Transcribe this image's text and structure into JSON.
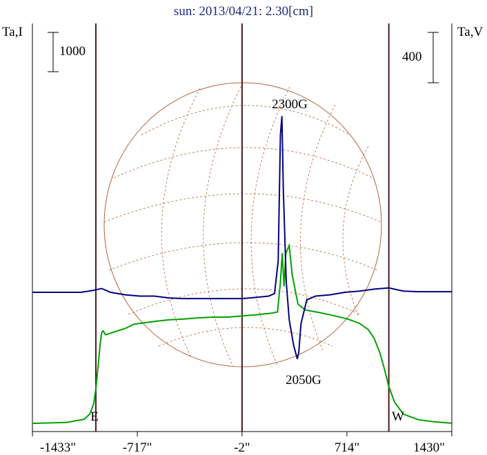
{
  "chart_data": {
    "type": "line",
    "title": "sun: 2013/04/21: 2.30[cm]",
    "left_axis_label": "Ta,I",
    "right_axis_label": "Ta,V",
    "left_scale_bar": "1000",
    "right_scale_bar": "400",
    "x_tick_labels": [
      "-1433\"",
      "-717\"",
      "-2\"",
      "714\"",
      "1430\""
    ],
    "x_ticks": [
      -1433,
      -717,
      -2,
      714,
      1430
    ],
    "xlim": [
      -1433,
      1430
    ],
    "grid": false,
    "markers": [
      {
        "label": "E",
        "x": -1000
      },
      {
        "x": -2
      },
      {
        "label": "W",
        "x": 1000
      }
    ],
    "annotations": [
      "2300G",
      "2050G"
    ],
    "series": [
      {
        "color": "#00a000",
        "values": [
          [
            -1433,
            15
          ],
          [
            -1200,
            40
          ],
          [
            -1080,
            120
          ],
          [
            -1040,
            260
          ],
          [
            -1015,
            520
          ],
          [
            -1000,
            900
          ],
          [
            -985,
            1450
          ],
          [
            -970,
            2050
          ],
          [
            -960,
            2330
          ],
          [
            -950,
            2370
          ],
          [
            -935,
            2270
          ],
          [
            -900,
            2310
          ],
          [
            -860,
            2360
          ],
          [
            -800,
            2430
          ],
          [
            -740,
            2540
          ],
          [
            -680,
            2570
          ],
          [
            -600,
            2610
          ],
          [
            -500,
            2650
          ],
          [
            -400,
            2670
          ],
          [
            -300,
            2700
          ],
          [
            -200,
            2720
          ],
          [
            -100,
            2720
          ],
          [
            0,
            2750
          ],
          [
            100,
            2780
          ],
          [
            200,
            2820
          ],
          [
            240,
            2850
          ],
          [
            260,
            3600
          ],
          [
            272,
            4350
          ],
          [
            285,
            3500
          ],
          [
            297,
            4350
          ],
          [
            320,
            4540
          ],
          [
            340,
            3800
          ],
          [
            380,
            3050
          ],
          [
            430,
            2900
          ],
          [
            520,
            2840
          ],
          [
            620,
            2760
          ],
          [
            720,
            2670
          ],
          [
            800,
            2560
          ],
          [
            860,
            2400
          ],
          [
            900,
            2180
          ],
          [
            940,
            1800
          ],
          [
            970,
            1400
          ],
          [
            1000,
            950
          ],
          [
            1040,
            550
          ],
          [
            1100,
            250
          ],
          [
            1200,
            110
          ],
          [
            1300,
            60
          ],
          [
            1430,
            20
          ]
        ]
      },
      {
        "color": "#000080",
        "values": [
          [
            -1433,
            0
          ],
          [
            -1100,
            0
          ],
          [
            -1020,
            15
          ],
          [
            -1000,
            20
          ],
          [
            -960,
            30
          ],
          [
            -900,
            0
          ],
          [
            -800,
            -20
          ],
          [
            -700,
            -30
          ],
          [
            -600,
            -30
          ],
          [
            -500,
            -45
          ],
          [
            -400,
            -50
          ],
          [
            -300,
            -50
          ],
          [
            -100,
            -50
          ],
          [
            0,
            -50
          ],
          [
            100,
            -40
          ],
          [
            180,
            -30
          ],
          [
            220,
            -10
          ],
          [
            245,
            250
          ],
          [
            260,
            1250
          ],
          [
            270,
            1400
          ],
          [
            280,
            800
          ],
          [
            300,
            80
          ],
          [
            320,
            -220
          ],
          [
            350,
            -420
          ],
          [
            375,
            -530
          ],
          [
            385,
            -480
          ],
          [
            400,
            -250
          ],
          [
            440,
            -60
          ],
          [
            500,
            -30
          ],
          [
            600,
            -20
          ],
          [
            700,
            0
          ],
          [
            800,
            10
          ],
          [
            900,
            25
          ],
          [
            1000,
            35
          ],
          [
            1100,
            10
          ],
          [
            1200,
            5
          ],
          [
            1430,
            5
          ]
        ]
      }
    ]
  }
}
